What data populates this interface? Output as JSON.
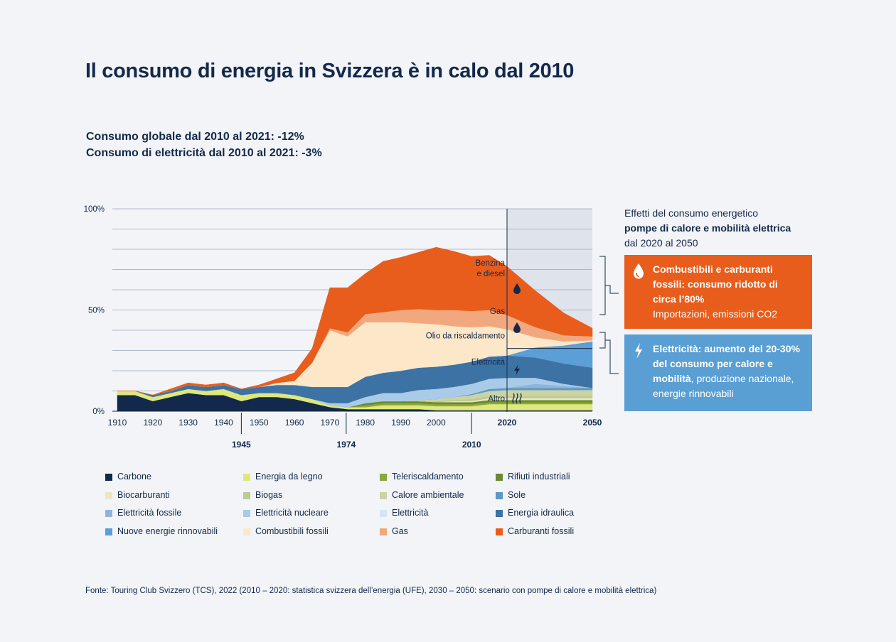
{
  "title": "Il consumo di energia in Svizzera è in calo dal 2010",
  "subtitle": {
    "line1": "Consumo globale dal 2010 al 2021: -12%",
    "line2": "Consumo di elettricità dal 2010 al 2021: -3%"
  },
  "colors": {
    "background": "#f2f4f7",
    "navy": "#13294b",
    "fossil_box": "#e85d1c",
    "elec_box": "#5a9fd4",
    "projection_bg": "#dfe4ec",
    "gridline": "#9aa6b8"
  },
  "chart_data": {
    "type": "area",
    "stacked": true,
    "ylabel": "",
    "ylim": [
      0,
      100
    ],
    "y_ticks": [
      "100%",
      "50%",
      "0%"
    ],
    "x_ticks": [
      "1910",
      "1920",
      "1930",
      "1940",
      "1950",
      "1960",
      "1970",
      "1980",
      "1990",
      "2000",
      "2020",
      "2050"
    ],
    "x_markers": [
      "1945",
      "1974",
      "2010"
    ],
    "projection_start": 2020,
    "projection_end": 2050,
    "x": [
      1910,
      1915,
      1920,
      1925,
      1930,
      1935,
      1940,
      1945,
      1950,
      1955,
      1960,
      1965,
      1970,
      1975,
      1980,
      1985,
      1990,
      1995,
      2000,
      2005,
      2010,
      2015,
      2020,
      2030,
      2040,
      2050
    ],
    "series": [
      {
        "name": "Carbone",
        "color": "#13294b",
        "values": [
          8,
          8,
          5,
          7,
          9,
          8,
          8,
          5,
          7,
          7,
          6,
          4,
          2,
          1,
          1,
          1,
          1,
          1,
          0.5,
          0.5,
          0.5,
          0.5,
          0.5,
          0.5,
          0.5,
          0.5
        ]
      },
      {
        "name": "Energia da legno",
        "color": "#dfe87a",
        "values": [
          2,
          2,
          2,
          2,
          2,
          2,
          3,
          3,
          2,
          2,
          2,
          2,
          1,
          1,
          1,
          2,
          2,
          2,
          2,
          2,
          2,
          3,
          3,
          3,
          3,
          3
        ]
      },
      {
        "name": "Teleriscaldamento",
        "color": "#8aa83c",
        "values": [
          0,
          0,
          0,
          0,
          0,
          0,
          0,
          0,
          0,
          0,
          0,
          0,
          0,
          0,
          1,
          1,
          1,
          1,
          1,
          1,
          1,
          1,
          1,
          1,
          1,
          1
        ]
      },
      {
        "name": "Rifiuti industriali",
        "color": "#6a8a32",
        "values": [
          0,
          0,
          0,
          0,
          0,
          0,
          0,
          0,
          0,
          0,
          0,
          0,
          0,
          0,
          1,
          1,
          1,
          1,
          1,
          1,
          1,
          1,
          1,
          1,
          1,
          1
        ]
      },
      {
        "name": "Biocarburanti",
        "color": "#e8e8c4",
        "values": [
          0,
          0,
          0,
          0,
          0,
          0,
          0,
          0,
          0,
          0,
          0,
          0,
          0,
          0,
          0,
          0,
          0,
          0,
          0,
          0.5,
          0.5,
          1,
          1,
          1,
          1,
          1
        ]
      },
      {
        "name": "Biogas",
        "color": "#c0c994",
        "values": [
          0,
          0,
          0,
          0,
          0,
          0,
          0,
          0,
          0,
          0,
          0,
          0,
          0,
          0,
          0,
          0,
          0,
          0,
          0.5,
          0.5,
          1,
          1,
          1,
          1,
          1,
          1
        ]
      },
      {
        "name": "Calore ambientale",
        "color": "#c9d3a4",
        "values": [
          0,
          0,
          0,
          0,
          0,
          0,
          0,
          0,
          0,
          0,
          0,
          0,
          0,
          0,
          0,
          0,
          0,
          0.5,
          1,
          1.5,
          2,
          2.5,
          3,
          3,
          3,
          3
        ]
      },
      {
        "name": "Sole",
        "color": "#5f97c7",
        "values": [
          0,
          0,
          0,
          0,
          0,
          0,
          0,
          0,
          0,
          0,
          0,
          0,
          0,
          0,
          0,
          0,
          0,
          0,
          0,
          0,
          0.5,
          1,
          1,
          1,
          1,
          1
        ]
      },
      {
        "name": "Elettricità fossile",
        "color": "#8fb4dc",
        "values": [
          0,
          0,
          0,
          0,
          0,
          0,
          0,
          0,
          0,
          0,
          0,
          0,
          0,
          0,
          0,
          0,
          0,
          0,
          0,
          0,
          0,
          0,
          0,
          2,
          1,
          0
        ]
      },
      {
        "name": "Elettricità nucleare",
        "color": "#a9cbe8",
        "values": [
          0,
          0,
          0,
          0,
          0,
          0,
          0,
          0,
          0,
          0,
          0,
          0,
          1,
          2,
          3,
          4,
          4,
          5,
          5,
          5,
          5,
          5,
          5,
          3,
          1,
          0
        ]
      },
      {
        "name": "Elettricità",
        "color": "#d4e6f5",
        "values": [
          0,
          0,
          0,
          0,
          0,
          0,
          0,
          0,
          0,
          0,
          0,
          0,
          0,
          0,
          0,
          0,
          0,
          0,
          0,
          0,
          0,
          0,
          0,
          0,
          0,
          0
        ]
      },
      {
        "name": "Energia idraulica",
        "color": "#3d72a4",
        "values": [
          0,
          0,
          1,
          1,
          2,
          2,
          2,
          3,
          3,
          4,
          5,
          6,
          8,
          8,
          10,
          10,
          11,
          11,
          11,
          11,
          11,
          11,
          11,
          10,
          10,
          10
        ]
      },
      {
        "name": "Nuove energie rinnovabili",
        "color": "#5b9fd6",
        "values": [
          0,
          0,
          0,
          0,
          0,
          0,
          0,
          0,
          0,
          0,
          0,
          0,
          0,
          0,
          0,
          0,
          0,
          0,
          0,
          0,
          0,
          0,
          0,
          5,
          9,
          13
        ]
      },
      {
        "name": "Combustibili fossili",
        "color": "#fde7c9",
        "values": [
          0,
          0,
          0,
          0,
          0,
          0,
          0,
          0,
          0,
          1,
          2,
          12,
          28,
          25,
          27,
          25,
          24,
          22,
          21,
          19,
          17,
          15,
          13,
          5,
          2,
          0.5
        ]
      },
      {
        "name": "Gas",
        "color": "#f2a87f",
        "values": [
          0,
          0,
          0,
          0,
          0,
          0,
          0,
          0,
          0,
          0,
          0,
          0,
          1,
          2,
          4,
          5,
          6,
          7,
          7,
          8,
          8,
          8,
          7,
          5,
          3,
          2
        ]
      },
      {
        "name": "Carburanti fossili",
        "color": "#e85d1c",
        "values": [
          0,
          0,
          0,
          1,
          1,
          1,
          1,
          0,
          1,
          2,
          4,
          7,
          20,
          22,
          20,
          25,
          26,
          28,
          31,
          29,
          27,
          27,
          24,
          18,
          11,
          4
        ]
      }
    ],
    "area_labels": [
      {
        "text": "Benzina\ne diesel",
        "year": 2019,
        "y": 72
      },
      {
        "text": "Gas",
        "year": 2019,
        "y": 48
      },
      {
        "text": "Olio da riscaldamento",
        "year": 2019,
        "y": 36
      },
      {
        "text": "Elettricità",
        "year": 2019,
        "y": 23
      },
      {
        "text": "Altro",
        "year": 2019,
        "y": 5
      }
    ]
  },
  "side_panel": {
    "heading_line1": "Effetti del consumo energetico",
    "heading_line2": "pompe di calore e mobilità elettrica",
    "heading_line3": "dal 2020 al 2050",
    "fossil_box": {
      "title": "Combustibili e carburanti fossili: consumo ridotto di circa l’80%",
      "detail": "Importazioni, emissioni CO2",
      "icon": "drop-icon"
    },
    "elec_box": {
      "title": "Elettricità: aumento del 20-30% del consumo per calore e mobilità",
      "detail": ", produzione nazionale, energie rinnovabili",
      "icon": "lightning-icon"
    }
  },
  "legend": [
    "Carbone",
    "Energia da legno",
    "Teleriscaldamento",
    "Rifiuti industriali",
    "Biocarburanti",
    "Biogas",
    "Calore ambientale",
    "Sole",
    "Elettricità fossile",
    "Elettricità nucleare",
    "Elettricità",
    "Energia idraulica",
    "Nuove energie rinnovabili",
    "Combustibili fossili",
    "Gas",
    "Carburanti fossili"
  ],
  "source": "Fonte: Touring Club Svizzero (TCS), 2022 (2010 – 2020: statistica svizzera dell’energia (UFE), 2030 – 2050: scenario con pompe di calore e mobilità elettrica)"
}
